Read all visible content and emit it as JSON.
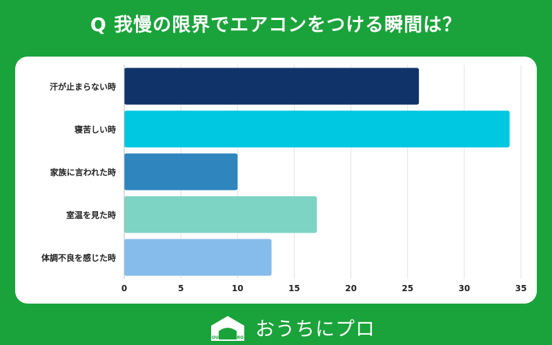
{
  "header": {
    "title": "Q 我慢の限界でエアコンをつける瞬間は？"
  },
  "chart_data": {
    "type": "bar",
    "orientation": "horizontal",
    "title": "Q 我慢の限界でエアコンをつける瞬間は？",
    "xlabel": "",
    "ylabel": "",
    "xlim": [
      0,
      35
    ],
    "xticks": [
      0,
      5,
      10,
      15,
      20,
      25,
      30,
      35
    ],
    "grid": true,
    "categories": [
      "汗が止まらない時",
      "寝苦しい時",
      "家族に言われた時",
      "室温を見た時",
      "体調不良を感じた時"
    ],
    "values": [
      26,
      34,
      10,
      17,
      13
    ],
    "colors": [
      "#10346a",
      "#00c8e0",
      "#2f86bf",
      "#7dd3c4",
      "#85bceb"
    ]
  },
  "footer": {
    "brand": "おうちにプロ",
    "logo_text": "OUCHI ni PRO"
  },
  "colors": {
    "background": "#1aa33a",
    "panel": "#ffffff",
    "grid": "#e2e2e2",
    "axis": "#bdbdbd"
  }
}
